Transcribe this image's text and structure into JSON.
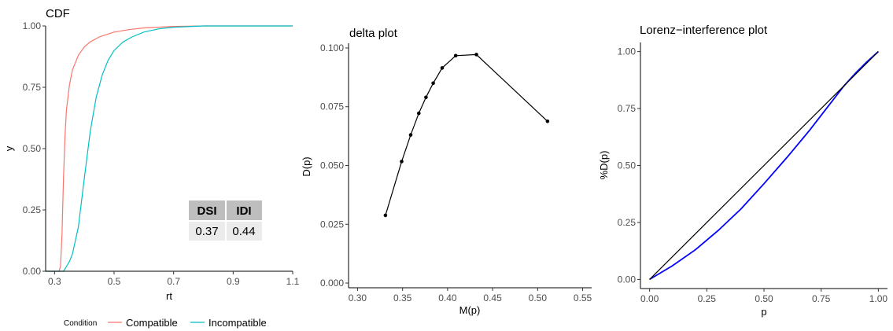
{
  "chart_data": [
    {
      "type": "line",
      "title": "CDF",
      "xlabel": "rt",
      "ylabel": "y",
      "xlim": [
        0.27,
        1.1
      ],
      "ylim": [
        0,
        1
      ],
      "x_ticks": [
        "0.3",
        "0.5",
        "0.7",
        "0.9",
        "1.1"
      ],
      "y_ticks": [
        "0.00",
        "0.25",
        "0.50",
        "0.75",
        "1.00"
      ],
      "legend": {
        "title": "Condition",
        "placement": "bottom"
      },
      "series": [
        {
          "name": "Compatible",
          "color": "#F8766D",
          "x": [
            0.27,
            0.315,
            0.32,
            0.325,
            0.33,
            0.335,
            0.34,
            0.35,
            0.36,
            0.38,
            0.4,
            0.42,
            0.45,
            0.5,
            0.55,
            0.6,
            0.7,
            0.8,
            1.1
          ],
          "values": [
            0,
            0,
            0.02,
            0.15,
            0.38,
            0.55,
            0.66,
            0.76,
            0.82,
            0.88,
            0.915,
            0.935,
            0.955,
            0.975,
            0.985,
            0.992,
            0.998,
            1.0,
            1.0
          ]
        },
        {
          "name": "Incompatible",
          "color": "#00BFC4",
          "x": [
            0.27,
            0.33,
            0.34,
            0.35,
            0.36,
            0.38,
            0.4,
            0.42,
            0.44,
            0.46,
            0.48,
            0.5,
            0.53,
            0.56,
            0.6,
            0.65,
            0.7,
            0.8,
            1.1
          ],
          "values": [
            0,
            0,
            0.02,
            0.04,
            0.07,
            0.18,
            0.38,
            0.57,
            0.71,
            0.8,
            0.86,
            0.9,
            0.935,
            0.955,
            0.975,
            0.988,
            0.995,
            1.0,
            1.0
          ]
        }
      ],
      "table": {
        "headers": [
          "DSI",
          "IDI"
        ],
        "values": [
          "0.37",
          "0.44"
        ]
      }
    },
    {
      "type": "line",
      "title": "delta plot",
      "xlabel": "M(p)",
      "ylabel": "D(p)",
      "xlim": [
        0.29,
        0.56
      ],
      "ylim": [
        -0.002,
        0.102
      ],
      "x_ticks": [
        "0.30",
        "0.35",
        "0.40",
        "0.45",
        "0.50",
        "0.55"
      ],
      "y_ticks": [
        "0.000",
        "0.025",
        "0.050",
        "0.075",
        "0.100"
      ],
      "series": [
        {
          "color": "#000000",
          "x": [
            0.331,
            0.349,
            0.359,
            0.368,
            0.376,
            0.384,
            0.394,
            0.409,
            0.432,
            0.511
          ],
          "values": [
            0.0288,
            0.0517,
            0.063,
            0.0722,
            0.079,
            0.085,
            0.0915,
            0.0967,
            0.0972,
            0.0688
          ]
        }
      ]
    },
    {
      "type": "line",
      "title": "Lorenz−interference plot",
      "xlabel": "p",
      "ylabel": "%D(p)",
      "xlim": [
        -0.04,
        1.04
      ],
      "ylim": [
        -0.04,
        1.04
      ],
      "x_ticks": [
        "0.00",
        "0.25",
        "0.50",
        "0.75",
        "1.00"
      ],
      "y_ticks": [
        "0.00",
        "0.25",
        "0.50",
        "0.75",
        "1.00"
      ],
      "series": [
        {
          "color": "#0000FF",
          "x": [
            0,
            0.1,
            0.2,
            0.3,
            0.4,
            0.5,
            0.6,
            0.7,
            0.8,
            0.85,
            0.9,
            0.95,
            1.0
          ],
          "values": [
            0,
            0.06,
            0.13,
            0.215,
            0.31,
            0.42,
            0.535,
            0.655,
            0.785,
            0.85,
            0.905,
            0.955,
            1.0
          ]
        },
        {
          "color": "#000000",
          "x": [
            0,
            1
          ],
          "values": [
            0,
            1
          ]
        }
      ]
    }
  ]
}
